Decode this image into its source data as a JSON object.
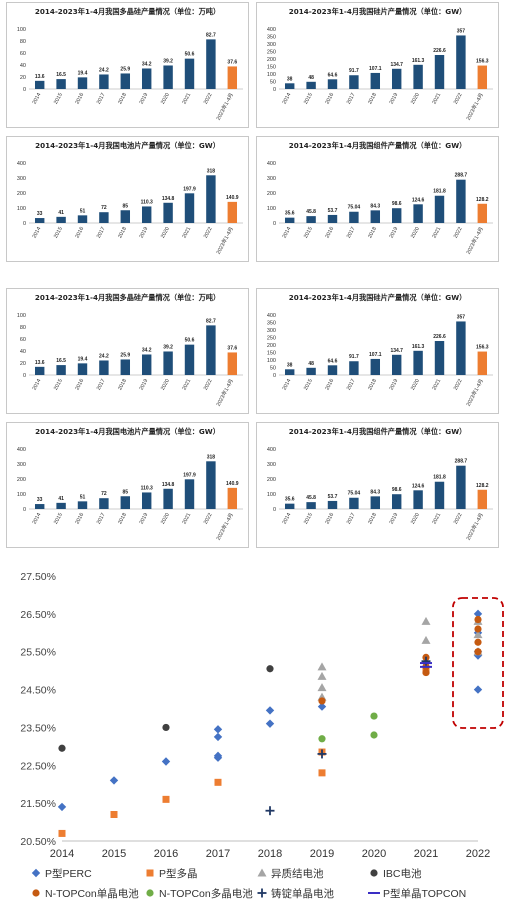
{
  "colors": {
    "bar": "#1f4e79",
    "bar_highlight": "#ed7d31",
    "perc": "#4472c4",
    "multi": "#ed7d31",
    "hjt": "#a5a5a5",
    "ibc": "#404040",
    "ntop_mono": "#c55a11",
    "ntop_multi": "#70ad47",
    "cast_mono": "#203864",
    "ptop": "#3a2ec4",
    "highlight_box": "#c00000"
  },
  "chart_data": [
    {
      "type": "bar",
      "title": "2014-2023年1-4月我国多晶硅产量情况（单位：万吨）",
      "categories": [
        "2014",
        "2015",
        "2016",
        "2017",
        "2018",
        "2019",
        "2020",
        "2021",
        "2022",
        "2023年1-4月"
      ],
      "values": [
        13.6,
        16.5,
        19.4,
        24.2,
        25.9,
        34.2,
        39.2,
        50.6,
        82.7,
        37.6
      ],
      "labels": [
        "13.6",
        "16.5",
        "19.4",
        "24.2",
        "25.9",
        "34.2",
        "39.2",
        "50.6",
        "82.7",
        "37.6"
      ],
      "ylim": [
        0,
        100
      ],
      "yticks": [
        "0",
        "20",
        "40",
        "60",
        "80",
        "100"
      ],
      "highlight_last": true
    },
    {
      "type": "bar",
      "title": "2014-2023年1-4月我国硅片产量情况（单位：GW）",
      "categories": [
        "2014",
        "2015",
        "2016",
        "2017",
        "2018",
        "2019",
        "2020",
        "2021",
        "2022",
        "2023年1-4月"
      ],
      "values": [
        38,
        48,
        64.6,
        91.7,
        107.1,
        134.7,
        161.3,
        226.6,
        357,
        156.3
      ],
      "labels": [
        "38",
        "48",
        "64.6",
        "91.7",
        "107.1",
        "134.7",
        "161.3",
        "226.6",
        "357",
        "156.3"
      ],
      "ylim": [
        0,
        400
      ],
      "yticks": [
        "0",
        "50",
        "100",
        "150",
        "200",
        "250",
        "300",
        "350",
        "400"
      ],
      "highlight_last": true
    },
    {
      "type": "bar",
      "title": "2014-2023年1-4月我国电池片产量情况（单位：GW）",
      "categories": [
        "2014",
        "2015",
        "2016",
        "2017",
        "2018",
        "2019",
        "2020",
        "2021",
        "2022",
        "2023年1-4月"
      ],
      "values": [
        33,
        41,
        51,
        72,
        85,
        110.3,
        134.8,
        197.9,
        318,
        140.9
      ],
      "labels": [
        "33",
        "41",
        "51",
        "72",
        "85",
        "110.3",
        "134.8",
        "197.9",
        "318",
        "140.9"
      ],
      "ylim": [
        0,
        400
      ],
      "yticks": [
        "0",
        "100",
        "200",
        "300",
        "400"
      ],
      "highlight_last": true
    },
    {
      "type": "bar",
      "title": "2014-2023年1-4月我国组件产量情况（单位：GW）",
      "categories": [
        "2014",
        "2015",
        "2016",
        "2017",
        "2018",
        "2019",
        "2020",
        "2021",
        "2022",
        "2023年1-4月"
      ],
      "values": [
        35.6,
        45.8,
        53.7,
        75.04,
        84.3,
        98.6,
        124.6,
        181.8,
        288.7,
        128.2
      ],
      "labels": [
        "35.6",
        "45.8",
        "53.7",
        "75.04",
        "84.3",
        "98.6",
        "124.6",
        "181.8",
        "288.7",
        "128.2"
      ],
      "ylim": [
        0,
        400
      ],
      "yticks": [
        "0",
        "100",
        "200",
        "300",
        "400"
      ],
      "highlight_last": true
    },
    {
      "type": "bar",
      "title": "2014-2023年1-4月我国多晶硅产量情况（单位：万吨）",
      "categories": [
        "2014",
        "2015",
        "2016",
        "2017",
        "2018",
        "2019",
        "2020",
        "2021",
        "2022",
        "2023年1-4月"
      ],
      "values": [
        13.6,
        16.5,
        19.4,
        24.2,
        25.9,
        34.2,
        39.2,
        50.6,
        82.7,
        37.6
      ],
      "labels": [
        "13.6",
        "16.5",
        "19.4",
        "24.2",
        "25.9",
        "34.2",
        "39.2",
        "50.6",
        "82.7",
        "37.6"
      ],
      "ylim": [
        0,
        100
      ],
      "yticks": [
        "0",
        "20",
        "40",
        "60",
        "80",
        "100"
      ],
      "highlight_last": true
    },
    {
      "type": "bar",
      "title": "2014-2023年1-4月我国硅片产量情况（单位：GW）",
      "categories": [
        "2014",
        "2015",
        "2016",
        "2017",
        "2018",
        "2019",
        "2020",
        "2021",
        "2022",
        "2023年1-4月"
      ],
      "values": [
        38,
        48,
        64.6,
        91.7,
        107.1,
        134.7,
        161.3,
        226.6,
        357,
        156.3
      ],
      "labels": [
        "38",
        "48",
        "64.6",
        "91.7",
        "107.1",
        "134.7",
        "161.3",
        "226.6",
        "357",
        "156.3"
      ],
      "ylim": [
        0,
        400
      ],
      "yticks": [
        "0",
        "50",
        "100",
        "150",
        "200",
        "250",
        "300",
        "350",
        "400"
      ],
      "highlight_last": true
    },
    {
      "type": "bar",
      "title": "2014-2023年1-4月我国电池片产量情况（单位：GW）",
      "categories": [
        "2014",
        "2015",
        "2016",
        "2017",
        "2018",
        "2019",
        "2020",
        "2021",
        "2022",
        "2023年1-4月"
      ],
      "values": [
        33,
        41,
        51,
        72,
        85,
        110.3,
        134.8,
        197.9,
        318,
        140.9
      ],
      "labels": [
        "33",
        "41",
        "51",
        "72",
        "85",
        "110.3",
        "134.8",
        "197.9",
        "318",
        "140.9"
      ],
      "ylim": [
        0,
        400
      ],
      "yticks": [
        "0",
        "100",
        "200",
        "300",
        "400"
      ],
      "highlight_last": true
    },
    {
      "type": "bar",
      "title": "2014-2023年1-4月我国组件产量情况（单位：GW）",
      "categories": [
        "2014",
        "2015",
        "2016",
        "2017",
        "2018",
        "2019",
        "2020",
        "2021",
        "2022",
        "2023年1-4月"
      ],
      "values": [
        35.6,
        45.8,
        53.7,
        75.04,
        84.3,
        98.6,
        124.6,
        181.8,
        288.7,
        128.2
      ],
      "labels": [
        "35.6",
        "45.8",
        "53.7",
        "75.04",
        "84.3",
        "98.6",
        "124.6",
        "181.8",
        "288.7",
        "128.2"
      ],
      "ylim": [
        0,
        400
      ],
      "yticks": [
        "0",
        "100",
        "200",
        "300",
        "400"
      ],
      "highlight_last": true
    },
    {
      "type": "scatter",
      "title": "",
      "x_categories": [
        "2014",
        "2015",
        "2016",
        "2017",
        "2018",
        "2019",
        "2020",
        "2021",
        "2022"
      ],
      "yticks": [
        "20.50%",
        "21.50%",
        "22.50%",
        "23.50%",
        "24.50%",
        "25.50%",
        "26.50%",
        "27.50%"
      ],
      "ylim": [
        20.5,
        27.5
      ],
      "grid": false,
      "highlight_box_category": "2022",
      "legend_position": "bottom",
      "series": [
        {
          "name": "P型PERC",
          "marker": "diamond",
          "color_key": "perc",
          "points": [
            [
              "2014",
              21.4
            ],
            [
              "2015",
              22.1
            ],
            [
              "2016",
              22.6
            ],
            [
              "2017",
              22.7
            ],
            [
              "2017",
              22.75
            ],
            [
              "2017",
              23.25
            ],
            [
              "2017",
              23.45
            ],
            [
              "2018",
              23.6
            ],
            [
              "2018",
              23.95
            ],
            [
              "2019",
              24.05
            ],
            [
              "2021",
              25.2
            ],
            [
              "2022",
              24.5
            ],
            [
              "2022",
              25.4
            ],
            [
              "2022",
              25.5
            ],
            [
              "2022",
              26.0
            ],
            [
              "2022",
              26.5
            ]
          ]
        },
        {
          "name": "P型多晶",
          "marker": "square",
          "color_key": "multi",
          "points": [
            [
              "2014",
              20.7
            ],
            [
              "2015",
              21.2
            ],
            [
              "2016",
              21.6
            ],
            [
              "2017",
              22.05
            ],
            [
              "2019",
              22.3
            ],
            [
              "2019",
              22.85
            ],
            [
              "2021",
              25.0
            ]
          ]
        },
        {
          "name": "异质结电池",
          "marker": "triangle",
          "color_key": "hjt",
          "points": [
            [
              "2019",
              24.3
            ],
            [
              "2019",
              24.55
            ],
            [
              "2019",
              24.85
            ],
            [
              "2019",
              25.1
            ],
            [
              "2021",
              25.8
            ],
            [
              "2021",
              26.3
            ],
            [
              "2022",
              25.5
            ],
            [
              "2022",
              25.95
            ],
            [
              "2022",
              26.3
            ]
          ]
        },
        {
          "name": "IBC电池",
          "marker": "circle",
          "color_key": "ibc",
          "points": [
            [
              "2014",
              22.95
            ],
            [
              "2016",
              23.5
            ],
            [
              "2018",
              25.05
            ]
          ]
        },
        {
          "name": "N-TOPCon单晶电池",
          "marker": "circle",
          "color_key": "ntop_mono",
          "points": [
            [
              "2019",
              24.2
            ],
            [
              "2021",
              24.95
            ],
            [
              "2021",
              25.1
            ],
            [
              "2021",
              25.35
            ],
            [
              "2022",
              25.5
            ],
            [
              "2022",
              25.75
            ],
            [
              "2022",
              26.1
            ],
            [
              "2022",
              26.35
            ]
          ]
        },
        {
          "name": "N-TOPCon多晶电池",
          "marker": "circle",
          "color_key": "ntop_multi",
          "points": [
            [
              "2019",
              23.2
            ],
            [
              "2020",
              23.3
            ],
            [
              "2020",
              23.8
            ]
          ]
        },
        {
          "name": "铸锭单晶电池",
          "marker": "plus",
          "color_key": "cast_mono",
          "points": [
            [
              "2018",
              21.3
            ],
            [
              "2019",
              22.8
            ],
            [
              "2021",
              25.25
            ]
          ]
        },
        {
          "name": "P型单晶TOPCON",
          "marker": "dash",
          "color_key": "ptop",
          "points": [
            [
              "2021",
              25.1
            ],
            [
              "2021",
              25.2
            ]
          ]
        }
      ]
    }
  ]
}
